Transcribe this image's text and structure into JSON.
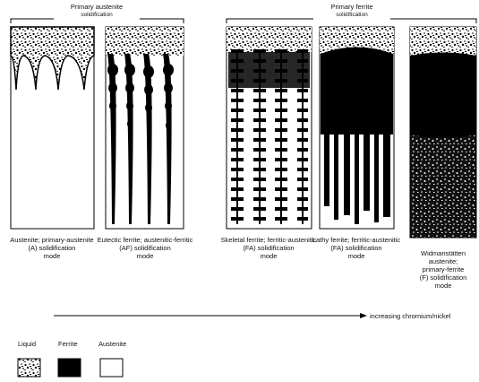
{
  "groups": [
    {
      "label": [
        "Primary austenite",
        "solidification"
      ]
    },
    {
      "label": [
        "Primary ferrite",
        "solidification"
      ]
    }
  ],
  "panels": [
    {
      "caption": [
        "Austenite; primary-austenite",
        "(A) solidification",
        "mode"
      ]
    },
    {
      "caption": [
        "Eutectic ferrite; austenitic-ferritic",
        "(AF) solidification",
        "mode"
      ]
    },
    {
      "caption": [
        "Skeletal ferrite; ferritic-austenitic",
        "(FA) solidification",
        "mode"
      ]
    },
    {
      "caption": [
        "Lathy ferrite; ferritic-austenitic",
        "(FA) solidification",
        "mode"
      ]
    },
    {
      "caption": [
        "Widmanstätten",
        "austenite;",
        "primary-ferrite",
        "(F) solidification",
        "mode"
      ]
    }
  ],
  "arrow_label": "increasing chromium/nickel",
  "legend": [
    "Liquid",
    "Ferrite",
    "Austenite"
  ]
}
